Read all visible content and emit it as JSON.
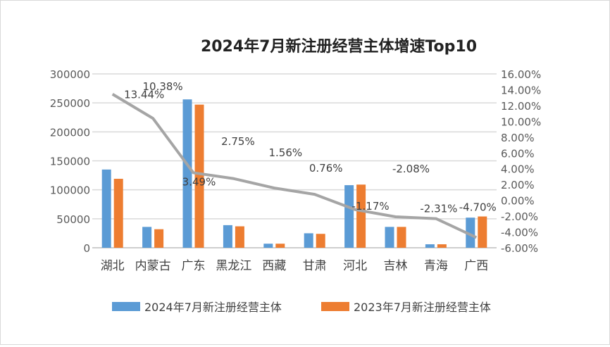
{
  "chart_data": {
    "type": "bar+line",
    "title": "2024年7月新注册经营主体增速Top10",
    "categories": [
      "湖北",
      "内蒙古",
      "广东",
      "黑龙江",
      "西藏",
      "甘肃",
      "河北",
      "吉林",
      "青海",
      "广西"
    ],
    "series": [
      {
        "name": "2024年7月新注册经营主体",
        "type": "bar",
        "axis": "left",
        "color": "#5b9bd5",
        "values": [
          135000,
          36000,
          256000,
          39000,
          7000,
          25000,
          108000,
          36000,
          6000,
          52000
        ]
      },
      {
        "name": "2023年7月新注册经营主体",
        "type": "bar",
        "axis": "left",
        "color": "#ed7d31",
        "values": [
          119000,
          32000,
          247000,
          37000,
          7000,
          24000,
          109000,
          36000,
          6000,
          54000
        ]
      },
      {
        "type": "line",
        "axis": "right",
        "color": "#a5a5a5",
        "values": [
          13.44,
          10.38,
          3.49,
          2.75,
          1.56,
          0.76,
          -1.17,
          -2.08,
          -2.31,
          -4.7
        ],
        "labels": [
          "13.44%",
          "10.38%",
          "3.49%",
          "2.75%",
          "1.56%",
          "0.76%",
          "-1.17%",
          "-2.08%",
          "-2.31%",
          "-4.70%"
        ]
      }
    ],
    "ylim_left": [
      0,
      300000
    ],
    "yticks_left": [
      "0",
      "50000",
      "100000",
      "150000",
      "200000",
      "250000",
      "300000"
    ],
    "ylim_right": [
      -6,
      16
    ],
    "yticks_right": [
      "-6.00%",
      "-4.00%",
      "-2.00%",
      "0.00%",
      "2.00%",
      "4.00%",
      "6.00%",
      "8.00%",
      "10.00%",
      "12.00%",
      "14.00%",
      "16.00%"
    ],
    "grid": true,
    "legend_position": "bottom"
  }
}
